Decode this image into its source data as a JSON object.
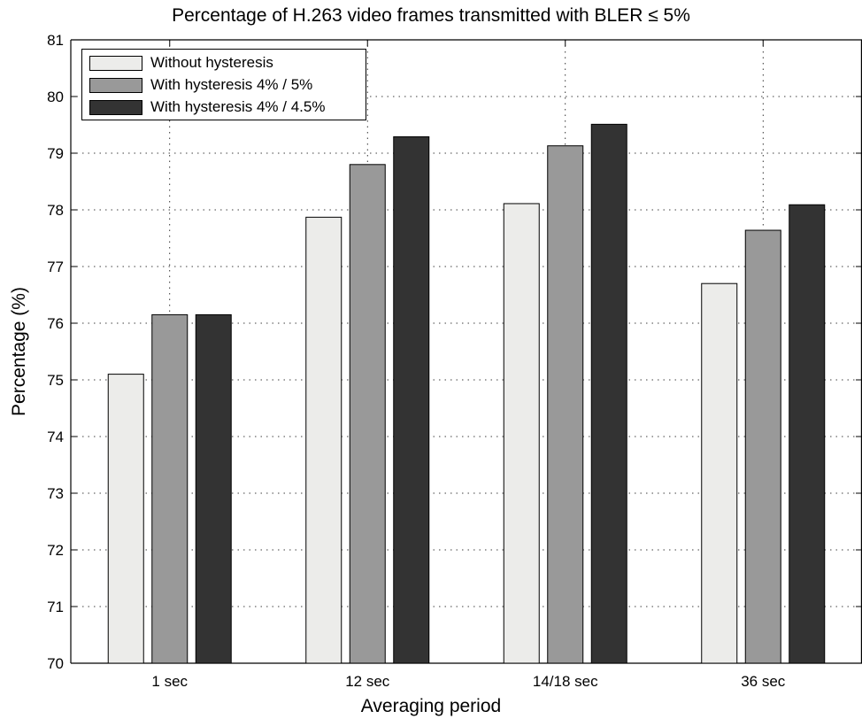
{
  "chart_data": {
    "type": "bar",
    "title": "Percentage of H.263 video frames transmitted with BLER ≤ 5%",
    "xlabel": "Averaging period",
    "ylabel": "Percentage (%)",
    "categories": [
      "1 sec",
      "12 sec",
      "14/18 sec",
      "36 sec"
    ],
    "series": [
      {
        "name": "Without hysteresis",
        "color": "#ececea",
        "values": [
          75.1,
          77.87,
          78.11,
          76.7
        ]
      },
      {
        "name": "With hysteresis 4% / 5%",
        "color": "#999999",
        "values": [
          76.15,
          78.8,
          79.13,
          77.64
        ]
      },
      {
        "name": "With hysteresis 4% / 4.5%",
        "color": "#333333",
        "values": [
          76.15,
          79.29,
          79.51,
          78.09
        ]
      }
    ],
    "ylim": [
      70,
      81
    ],
    "yticks": [
      70,
      71,
      72,
      73,
      74,
      75,
      76,
      77,
      78,
      79,
      80,
      81
    ],
    "grid": true,
    "legend_position": "top-left"
  }
}
